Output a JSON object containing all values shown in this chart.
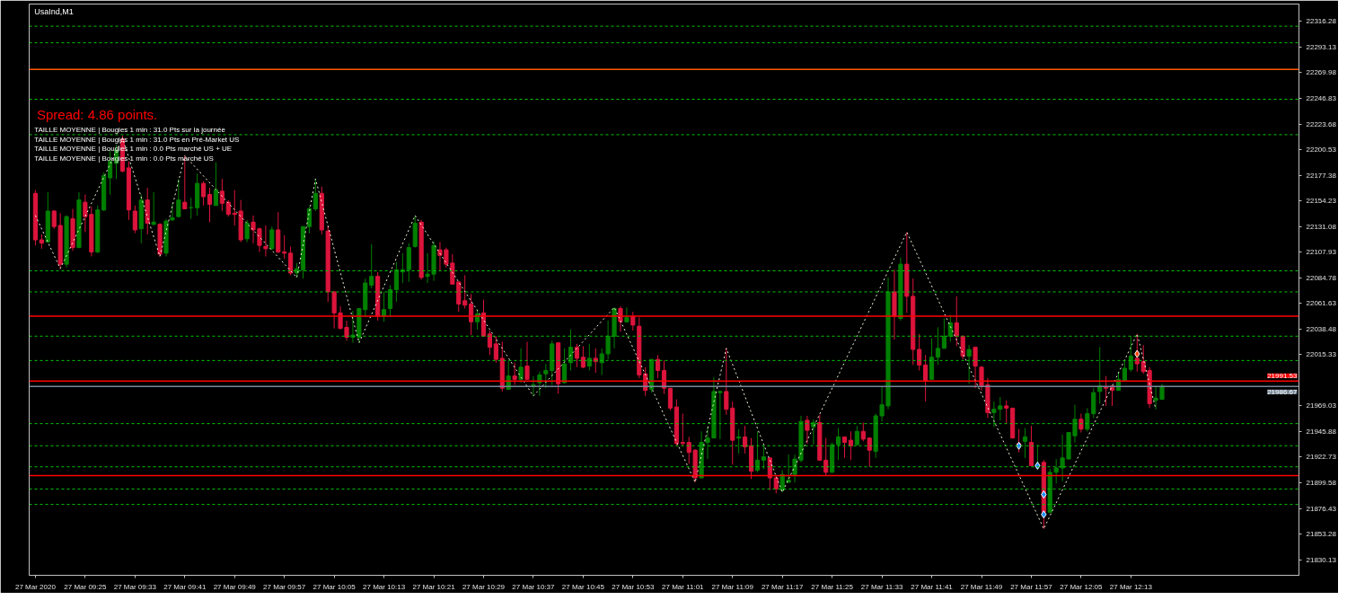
{
  "chart_data": {
    "type": "candlestick",
    "title": "UsaInd,M1",
    "x": [
      "2020-03-27T09:17",
      "2020-03-27T09:18",
      "2020-03-27T09:19",
      "2020-03-27T09:20",
      "2020-03-27T09:21",
      "2020-03-27T09:22",
      "2020-03-27T09:23",
      "2020-03-27T09:24",
      "2020-03-27T09:25",
      "2020-03-27T09:26",
      "2020-03-27T09:27",
      "2020-03-27T09:28",
      "2020-03-27T09:29",
      "2020-03-27T09:30",
      "2020-03-27T09:31",
      "2020-03-27T09:32",
      "2020-03-27T09:33",
      "2020-03-27T09:34",
      "2020-03-27T09:35",
      "2020-03-27T09:36",
      "2020-03-27T09:37",
      "2020-03-27T09:38",
      "2020-03-27T09:39",
      "2020-03-27T09:40",
      "2020-03-27T09:41",
      "2020-03-27T09:42",
      "2020-03-27T09:43",
      "2020-03-27T09:44",
      "2020-03-27T09:45",
      "2020-03-27T09:46",
      "2020-03-27T09:47",
      "2020-03-27T09:48",
      "2020-03-27T09:49",
      "2020-03-27T09:50",
      "2020-03-27T09:51",
      "2020-03-27T09:52",
      "2020-03-27T09:53",
      "2020-03-27T09:54",
      "2020-03-27T09:55",
      "2020-03-27T09:56",
      "2020-03-27T09:57",
      "2020-03-27T09:58",
      "2020-03-27T09:59",
      "2020-03-27T10:00",
      "2020-03-27T10:01",
      "2020-03-27T10:02",
      "2020-03-27T10:03",
      "2020-03-27T10:04",
      "2020-03-27T10:05",
      "2020-03-27T10:06",
      "2020-03-27T10:07",
      "2020-03-27T10:08",
      "2020-03-27T10:09",
      "2020-03-27T10:10",
      "2020-03-27T10:11",
      "2020-03-27T10:12",
      "2020-03-27T10:13",
      "2020-03-27T10:14",
      "2020-03-27T10:15",
      "2020-03-27T10:16",
      "2020-03-27T10:17",
      "2020-03-27T10:18",
      "2020-03-27T10:19",
      "2020-03-27T10:20",
      "2020-03-27T10:21",
      "2020-03-27T10:22",
      "2020-03-27T10:23",
      "2020-03-27T10:24",
      "2020-03-27T10:25",
      "2020-03-27T10:26",
      "2020-03-27T10:27",
      "2020-03-27T10:28",
      "2020-03-27T10:29",
      "2020-03-27T10:30",
      "2020-03-27T10:31",
      "2020-03-27T10:32",
      "2020-03-27T10:33",
      "2020-03-27T10:34",
      "2020-03-27T10:35",
      "2020-03-27T10:36",
      "2020-03-27T10:37",
      "2020-03-27T10:38",
      "2020-03-27T10:39",
      "2020-03-27T10:40",
      "2020-03-27T10:41",
      "2020-03-27T10:42",
      "2020-03-27T10:43",
      "2020-03-27T10:44",
      "2020-03-27T10:45",
      "2020-03-27T10:46",
      "2020-03-27T10:47",
      "2020-03-27T10:48",
      "2020-03-27T10:49",
      "2020-03-27T10:50",
      "2020-03-27T10:51",
      "2020-03-27T10:52",
      "2020-03-27T10:53",
      "2020-03-27T10:54",
      "2020-03-27T10:55",
      "2020-03-27T10:56",
      "2020-03-27T10:57",
      "2020-03-27T10:58",
      "2020-03-27T10:59",
      "2020-03-27T11:00",
      "2020-03-27T11:01",
      "2020-03-27T11:02",
      "2020-03-27T11:03",
      "2020-03-27T11:04",
      "2020-03-27T11:05",
      "2020-03-27T11:06",
      "2020-03-27T11:07",
      "2020-03-27T11:08",
      "2020-03-27T11:09",
      "2020-03-27T11:10",
      "2020-03-27T11:11",
      "2020-03-27T11:12",
      "2020-03-27T11:13",
      "2020-03-27T11:14",
      "2020-03-27T11:15",
      "2020-03-27T11:16",
      "2020-03-27T11:17",
      "2020-03-27T11:18",
      "2020-03-27T11:19",
      "2020-03-27T11:20",
      "2020-03-27T11:21",
      "2020-03-27T11:22",
      "2020-03-27T11:23",
      "2020-03-27T11:24",
      "2020-03-27T11:25",
      "2020-03-27T11:26",
      "2020-03-27T11:27",
      "2020-03-27T11:28",
      "2020-03-27T11:29",
      "2020-03-27T11:30",
      "2020-03-27T11:31",
      "2020-03-27T11:32",
      "2020-03-27T11:33",
      "2020-03-27T11:34",
      "2020-03-27T11:35",
      "2020-03-27T11:36",
      "2020-03-27T11:37",
      "2020-03-27T11:38",
      "2020-03-27T11:39",
      "2020-03-27T11:40",
      "2020-03-27T11:41",
      "2020-03-27T11:42",
      "2020-03-27T11:43",
      "2020-03-27T11:44",
      "2020-03-27T11:45",
      "2020-03-27T11:46",
      "2020-03-27T11:47",
      "2020-03-27T11:48",
      "2020-03-27T11:49",
      "2020-03-27T11:50",
      "2020-03-27T11:51",
      "2020-03-27T11:52",
      "2020-03-27T11:53",
      "2020-03-27T11:54",
      "2020-03-27T11:55",
      "2020-03-27T11:56",
      "2020-03-27T11:57",
      "2020-03-27T11:58",
      "2020-03-27T11:59",
      "2020-03-27T12:00",
      "2020-03-27T12:01",
      "2020-03-27T12:02",
      "2020-03-27T12:03",
      "2020-03-27T12:04",
      "2020-03-27T12:05",
      "2020-03-27T12:06",
      "2020-03-27T12:07",
      "2020-03-27T12:08",
      "2020-03-27T12:09",
      "2020-03-27T12:10",
      "2020-03-27T12:11",
      "2020-03-27T12:12",
      "2020-03-27T12:13",
      "2020-03-27T12:14",
      "2020-03-27T12:15",
      "2020-03-27T12:16",
      "2020-03-27T12:17",
      "2020-03-27T12:18"
    ],
    "ohlc": [
      [
        22161,
        22164,
        22114,
        22119
      ],
      [
        22119,
        22124,
        22111,
        22116
      ],
      [
        22117,
        22162,
        22117,
        22145
      ],
      [
        22145,
        22146,
        22129,
        22131
      ],
      [
        22132,
        22143,
        22093,
        22097
      ],
      [
        22097,
        22141,
        22094,
        22140
      ],
      [
        22138,
        22147,
        22109,
        22112
      ],
      [
        22112,
        22162,
        22112,
        22155
      ],
      [
        22153,
        22160,
        22126,
        22140
      ],
      [
        22142,
        22149,
        22104,
        22108
      ],
      [
        22108,
        22150,
        22107,
        22146
      ],
      [
        22146,
        22180,
        22145,
        22177
      ],
      [
        22175,
        22200,
        22160,
        22190
      ],
      [
        22188,
        22205,
        22174,
        22200
      ],
      [
        22210,
        22213,
        22180,
        22181
      ],
      [
        22184,
        22190,
        22137,
        22146
      ],
      [
        22145,
        22150,
        22125,
        22128
      ],
      [
        22129,
        22160,
        22116,
        22155
      ],
      [
        22155,
        22166,
        22124,
        22134
      ],
      [
        22133,
        22162,
        22132,
        22135
      ],
      [
        22133,
        22134,
        22104,
        22106
      ],
      [
        22107,
        22138,
        22104,
        22136
      ],
      [
        22137,
        22152,
        22136,
        22139
      ],
      [
        22140,
        22174,
        22140,
        22155
      ],
      [
        22153,
        22195,
        22147,
        22147
      ],
      [
        22148,
        22157,
        22138,
        22148
      ],
      [
        22148,
        22179,
        22141,
        22170
      ],
      [
        22170,
        22172,
        22150,
        22158
      ],
      [
        22160,
        22166,
        22135,
        22151
      ],
      [
        22150,
        22189,
        22150,
        22164
      ],
      [
        22163,
        22174,
        22145,
        22152
      ],
      [
        22153,
        22155,
        22140,
        22142
      ],
      [
        22143,
        22164,
        22132,
        22142
      ],
      [
        22145,
        22155,
        22117,
        22119
      ],
      [
        22120,
        22137,
        22117,
        22134
      ],
      [
        22135,
        22141,
        22116,
        22128
      ],
      [
        22129,
        22130,
        22108,
        22114
      ],
      [
        22113,
        22132,
        22104,
        22111
      ],
      [
        22111,
        22131,
        22110,
        22128
      ],
      [
        22128,
        22144,
        22107,
        22108
      ],
      [
        22108,
        22123,
        22102,
        22107
      ],
      [
        22107,
        22113,
        22087,
        22089
      ],
      [
        22089,
        22098,
        22085,
        22093
      ],
      [
        22092,
        22131,
        22084,
        22131
      ],
      [
        22131,
        22149,
        22125,
        22147
      ],
      [
        22147,
        22174,
        22145,
        22161
      ],
      [
        22161,
        22167,
        22124,
        22128
      ],
      [
        22127,
        22131,
        22063,
        22072
      ],
      [
        22072,
        22073,
        22039,
        22053
      ],
      [
        22053,
        22059,
        22038,
        22039
      ],
      [
        22040,
        22046,
        22028,
        22031
      ],
      [
        22031,
        22055,
        22026,
        22033
      ],
      [
        22031,
        22057,
        22026,
        22057
      ],
      [
        22056,
        22084,
        22049,
        22080
      ],
      [
        22078,
        22115,
        22075,
        22086
      ],
      [
        22086,
        22090,
        22046,
        22050
      ],
      [
        22050,
        22072,
        22045,
        22056
      ],
      [
        22057,
        22078,
        22050,
        22074
      ],
      [
        22074,
        22099,
        22063,
        22092
      ],
      [
        22090,
        22107,
        22080,
        22092
      ],
      [
        22092,
        22116,
        22081,
        22112
      ],
      [
        22113,
        22141,
        22112,
        22134
      ],
      [
        22135,
        22137,
        22083,
        22085
      ],
      [
        22086,
        22107,
        22080,
        22088
      ],
      [
        22088,
        22118,
        22082,
        22114
      ],
      [
        22110,
        22117,
        22091,
        22105
      ],
      [
        22110,
        22112,
        22094,
        22097
      ],
      [
        22098,
        22106,
        22079,
        22079
      ],
      [
        22081,
        22081,
        22054,
        22061
      ],
      [
        22064,
        22087,
        22057,
        22060
      ],
      [
        22061,
        22070,
        22033,
        22045
      ],
      [
        22045,
        22056,
        22038,
        22052
      ],
      [
        22053,
        22065,
        22032,
        22032
      ],
      [
        22034,
        22037,
        22015,
        22022
      ],
      [
        22025,
        22032,
        22008,
        22011
      ],
      [
        22012,
        22027,
        21982,
        21985
      ],
      [
        21984,
        22010,
        21984,
        21996
      ],
      [
        21996,
        22008,
        21988,
        21993
      ],
      [
        21993,
        22021,
        21990,
        22004
      ],
      [
        22005,
        22027,
        21993,
        21993
      ],
      [
        21987,
        21996,
        21978,
        21988
      ],
      [
        21990,
        22000,
        21978,
        21997
      ],
      [
        21998,
        22007,
        21985,
        22001
      ],
      [
        22001,
        22028,
        21988,
        22025
      ],
      [
        22026,
        22026,
        21980,
        21989
      ],
      [
        21990,
        22021,
        21989,
        22007
      ],
      [
        22008,
        22038,
        22001,
        22022
      ],
      [
        22022,
        22025,
        22004,
        22012
      ],
      [
        22013,
        22023,
        22003,
        22004
      ],
      [
        22005,
        22025,
        22001,
        22012
      ],
      [
        22012,
        22021,
        21999,
        22009
      ],
      [
        22008,
        22021,
        21997,
        22016
      ],
      [
        22016,
        22046,
        22011,
        22032
      ],
      [
        22032,
        22058,
        22021,
        22057
      ],
      [
        22057,
        22059,
        22036,
        22045
      ],
      [
        22045,
        22058,
        22044,
        22049
      ],
      [
        22050,
        22054,
        22037,
        22042
      ],
      [
        22041,
        22049,
        21994,
        21997
      ],
      [
        21998,
        22004,
        21978,
        21983
      ],
      [
        21984,
        22011,
        21981,
        22011
      ],
      [
        22011,
        22015,
        21994,
        22001
      ],
      [
        22001,
        22010,
        21980,
        21985
      ],
      [
        21985,
        21985,
        21965,
        21967
      ],
      [
        21968,
        21975,
        21933,
        21935
      ],
      [
        21936,
        21962,
        21933,
        21935
      ],
      [
        21936,
        21941,
        21917,
        21927
      ],
      [
        21929,
        21930,
        21900,
        21904
      ],
      [
        21904,
        21946,
        21904,
        21936
      ],
      [
        21936,
        21950,
        21921,
        21940
      ],
      [
        21940,
        21995,
        21940,
        21982
      ],
      [
        21981,
        21983,
        21939,
        21982
      ],
      [
        21982,
        22021,
        21961,
        21966
      ],
      [
        21967,
        21973,
        21916,
        21938
      ],
      [
        21940,
        21948,
        21926,
        21941
      ],
      [
        21941,
        21951,
        21926,
        21932
      ],
      [
        21933,
        21940,
        21903,
        21910
      ],
      [
        21911,
        21946,
        21909,
        21920
      ],
      [
        21920,
        21933,
        21912,
        21923
      ],
      [
        21922,
        21922,
        21893,
        21904
      ],
      [
        21904,
        21906,
        21890,
        21894
      ],
      [
        21893,
        21911,
        21891,
        21907
      ],
      [
        21900,
        21925,
        21900,
        21902
      ],
      [
        21907,
        21925,
        21900,
        21921
      ],
      [
        21920,
        21960,
        21918,
        21955
      ],
      [
        21956,
        21960,
        21935,
        21947
      ],
      [
        21950,
        21957,
        21934,
        21954
      ],
      [
        21954,
        21961,
        21920,
        21920
      ],
      [
        21920,
        21940,
        21906,
        21909
      ],
      [
        21909,
        21936,
        21909,
        21934
      ],
      [
        21934,
        21949,
        21920,
        21941
      ],
      [
        21941,
        21941,
        21922,
        21936
      ],
      [
        21938,
        21946,
        21920,
        21933
      ],
      [
        21934,
        21951,
        21933,
        21946
      ],
      [
        21946,
        21954,
        21937,
        21939
      ],
      [
        21940,
        21940,
        21914,
        21929
      ],
      [
        21928,
        21962,
        21922,
        21960
      ],
      [
        21960,
        21986,
        21955,
        21970
      ],
      [
        21969,
        22085,
        21966,
        22072
      ],
      [
        22072,
        22092,
        22029,
        22050
      ],
      [
        22048,
        22103,
        22046,
        22097
      ],
      [
        22097,
        22126,
        22053,
        22068
      ],
      [
        22068,
        22084,
        22006,
        22020
      ],
      [
        22020,
        22034,
        22001,
        22006
      ],
      [
        22006,
        22015,
        21973,
        21992
      ],
      [
        21993,
        22030,
        21993,
        22013
      ],
      [
        22013,
        22040,
        22006,
        22021
      ],
      [
        22021,
        22048,
        22021,
        22032
      ],
      [
        22032,
        22051,
        22027,
        22044
      ],
      [
        22044,
        22068,
        22023,
        22032
      ],
      [
        22032,
        22032,
        22011,
        22014
      ],
      [
        22014,
        22024,
        21989,
        22020
      ],
      [
        22022,
        22022,
        21985,
        22005
      ],
      [
        22004,
        22005,
        21983,
        21987
      ],
      [
        21988,
        21994,
        21958,
        21963
      ],
      [
        21963,
        21973,
        21950,
        21966
      ],
      [
        21966,
        21977,
        21956,
        21969
      ],
      [
        21969,
        21974,
        21953,
        21967
      ],
      [
        21967,
        21967,
        21940,
        21940
      ],
      [
        21935,
        21948,
        21927,
        21933
      ],
      [
        21937,
        21949,
        21922,
        21941
      ],
      [
        21936,
        21951,
        21915,
        21915
      ],
      [
        21914,
        21934,
        21914,
        21916
      ],
      [
        21918,
        21920,
        21858,
        21873
      ],
      [
        21873,
        21912,
        21872,
        21909
      ],
      [
        21909,
        21921,
        21899,
        21913
      ],
      [
        21913,
        21943,
        21901,
        21922
      ],
      [
        21921,
        21945,
        21921,
        21945
      ],
      [
        21942,
        21970,
        21936,
        21957
      ],
      [
        21957,
        21962,
        21945,
        21948
      ],
      [
        21948,
        21967,
        21946,
        21962
      ],
      [
        21962,
        21985,
        21958,
        21981
      ],
      [
        21982,
        22022,
        21971,
        21987
      ],
      [
        21986,
        21996,
        21969,
        21985
      ],
      [
        21987,
        21987,
        21969,
        21983
      ],
      [
        21983,
        22000,
        21983,
        21993
      ],
      [
        21992,
        22010,
        21992,
        22003
      ],
      [
        22002,
        22032,
        22000,
        22014
      ],
      [
        22012,
        22034,
        22000,
        22007
      ],
      [
        22009,
        22024,
        21998,
        22000
      ],
      [
        22001,
        22004,
        21967,
        21971
      ],
      [
        21974,
        21987,
        21966,
        21976
      ],
      [
        21975,
        21989,
        21975,
        21986.67
      ]
    ],
    "series": [
      {
        "type": "line",
        "color": "#f5f5dc",
        "line_style": "dotted",
        "x": [
          "2020-03-27T09:17",
          "2020-03-27T09:21",
          "2020-03-27T09:31",
          "2020-03-27T09:37",
          "2020-03-27T09:41",
          "2020-03-27T09:59",
          "2020-03-27T10:02",
          "2020-03-27T10:09",
          "2020-03-27T10:18",
          "2020-03-27T10:37",
          "2020-03-27T10:50",
          "2020-03-27T11:03",
          "2020-03-27T11:08",
          "2020-03-27T11:17",
          "2020-03-27T11:37",
          "2020-03-27T11:59",
          "2020-03-27T12:14",
          "2020-03-27T12:17"
        ],
        "values": [
          22141,
          22093,
          22211,
          22104,
          22195,
          22085,
          22174,
          22026,
          22141,
          21978,
          22058,
          21900,
          22021,
          21891,
          22126,
          21858,
          22034,
          21966
        ]
      },
      {
        "type": "scatter",
        "color": "#1e90ff",
        "marker": "diamond",
        "x": [
          "2020-03-27T11:55",
          "2020-03-27T11:58",
          "2020-03-27T11:59",
          "2020-03-27T11:59"
        ],
        "values": [
          21933,
          21915,
          21889,
          21871
        ]
      },
      {
        "type": "scatter",
        "color": "#ff4500",
        "marker": "diamond",
        "x": [
          "2020-03-27T12:14"
        ],
        "values": [
          22016
        ]
      }
    ],
    "ref_lines": [
      {
        "axis": "y",
        "value": 22312,
        "color": "#00c800",
        "line_style": "dashed"
      },
      {
        "axis": "y",
        "value": 22297,
        "color": "#00c800",
        "line_style": "dashed"
      },
      {
        "axis": "y",
        "value": 22273,
        "color": "#ff5a00",
        "line_style": "solid"
      },
      {
        "axis": "y",
        "value": 22246,
        "color": "#00c800",
        "line_style": "dashed"
      },
      {
        "axis": "y",
        "value": 22214,
        "color": "#00c800",
        "line_style": "dashed"
      },
      {
        "axis": "y",
        "value": 22091,
        "color": "#00c800",
        "line_style": "dashed"
      },
      {
        "axis": "y",
        "value": 22072,
        "color": "#00c800",
        "line_style": "dashed"
      },
      {
        "axis": "y",
        "value": 22050,
        "color": "#ff0000",
        "line_style": "solid"
      },
      {
        "axis": "y",
        "value": 22032,
        "color": "#00c800",
        "line_style": "dashed"
      },
      {
        "axis": "y",
        "value": 22010,
        "color": "#00c800",
        "line_style": "dashed"
      },
      {
        "axis": "y",
        "value": 21991.53,
        "label": "21991.53",
        "color": "#ff0000",
        "line_style": "solid"
      },
      {
        "axis": "y",
        "value": 21986.67,
        "label": "21986.67",
        "color": "#778899",
        "line_style": "solid"
      },
      {
        "axis": "y",
        "value": 21953,
        "color": "#00c800",
        "line_style": "dashed"
      },
      {
        "axis": "y",
        "value": 21933,
        "color": "#00c800",
        "line_style": "dashed"
      },
      {
        "axis": "y",
        "value": 21914,
        "color": "#00c800",
        "line_style": "dashed"
      },
      {
        "axis": "y",
        "value": 21906,
        "color": "#ff0000",
        "line_style": "solid"
      },
      {
        "axis": "y",
        "value": 21894,
        "color": "#00c800",
        "line_style": "dashed"
      },
      {
        "axis": "y",
        "value": 21880,
        "color": "#00c800",
        "line_style": "dashed"
      }
    ],
    "annotations": [
      "Spread: 4.86 points.",
      "TAILLE MOYENNE | Bougies 1 min : 31.0 Pts sur la journée",
      "TAILLE MOYENNE | Bougies 1 min : 31.0 Pts en Pré-Market US",
      "TAILLE MOYENNE | Bougies 1 min : 0.0 Pts marché US + UE",
      "TAILLE MOYENNE | Bougies 1 min : 0.0 Pts marché US"
    ],
    "xlim": [
      "2020-03-27T09:16",
      "2020-03-27T12:40"
    ],
    "ylim": [
      21816,
      22332
    ],
    "xticks": [
      {
        "value": "2020-03-27T09:17",
        "label": "27 Mar 2020"
      },
      {
        "value": "2020-03-27T09:25",
        "label": "27 Mar 09:25"
      },
      {
        "value": "2020-03-27T09:33",
        "label": "27 Mar 09:33"
      },
      {
        "value": "2020-03-27T09:41",
        "label": "27 Mar 09:41"
      },
      {
        "value": "2020-03-27T09:49",
        "label": "27 Mar 09:49"
      },
      {
        "value": "2020-03-27T09:57",
        "label": "27 Mar 09:57"
      },
      {
        "value": "2020-03-27T10:05",
        "label": "27 Mar 10:05"
      },
      {
        "value": "2020-03-27T10:13",
        "label": "27 Mar 10:13"
      },
      {
        "value": "2020-03-27T10:21",
        "label": "27 Mar 10:21"
      },
      {
        "value": "2020-03-27T10:29",
        "label": "27 Mar 10:29"
      },
      {
        "value": "2020-03-27T10:37",
        "label": "27 Mar 10:37"
      },
      {
        "value": "2020-03-27T10:45",
        "label": "27 Mar 10:45"
      },
      {
        "value": "2020-03-27T10:53",
        "label": "27 Mar 10:53"
      },
      {
        "value": "2020-03-27T11:01",
        "label": "27 Mar 11:01"
      },
      {
        "value": "2020-03-27T11:09",
        "label": "27 Mar 11:09"
      },
      {
        "value": "2020-03-27T11:17",
        "label": "27 Mar 11:17"
      },
      {
        "value": "2020-03-27T11:25",
        "label": "27 Mar 11:25"
      },
      {
        "value": "2020-03-27T11:33",
        "label": "27 Mar 11:33"
      },
      {
        "value": "2020-03-27T11:41",
        "label": "27 Mar 11:41"
      },
      {
        "value": "2020-03-27T11:49",
        "label": "27 Mar 11:49"
      },
      {
        "value": "2020-03-27T11:57",
        "label": "27 Mar 11:57"
      },
      {
        "value": "2020-03-27T12:05",
        "label": "27 Mar 12:05"
      },
      {
        "value": "2020-03-27T12:13",
        "label": "27 Mar 12:13"
      }
    ],
    "yticks": [
      22316.28,
      22293.13,
      22269.98,
      22246.83,
      22223.68,
      22200.53,
      22177.38,
      22154.23,
      22131.08,
      22107.93,
      22084.78,
      22061.63,
      22038.48,
      22015.33,
      21969.03,
      21945.88,
      21922.73,
      21899.58,
      21876.43,
      21853.28,
      21830.13
    ],
    "grid": false
  }
}
